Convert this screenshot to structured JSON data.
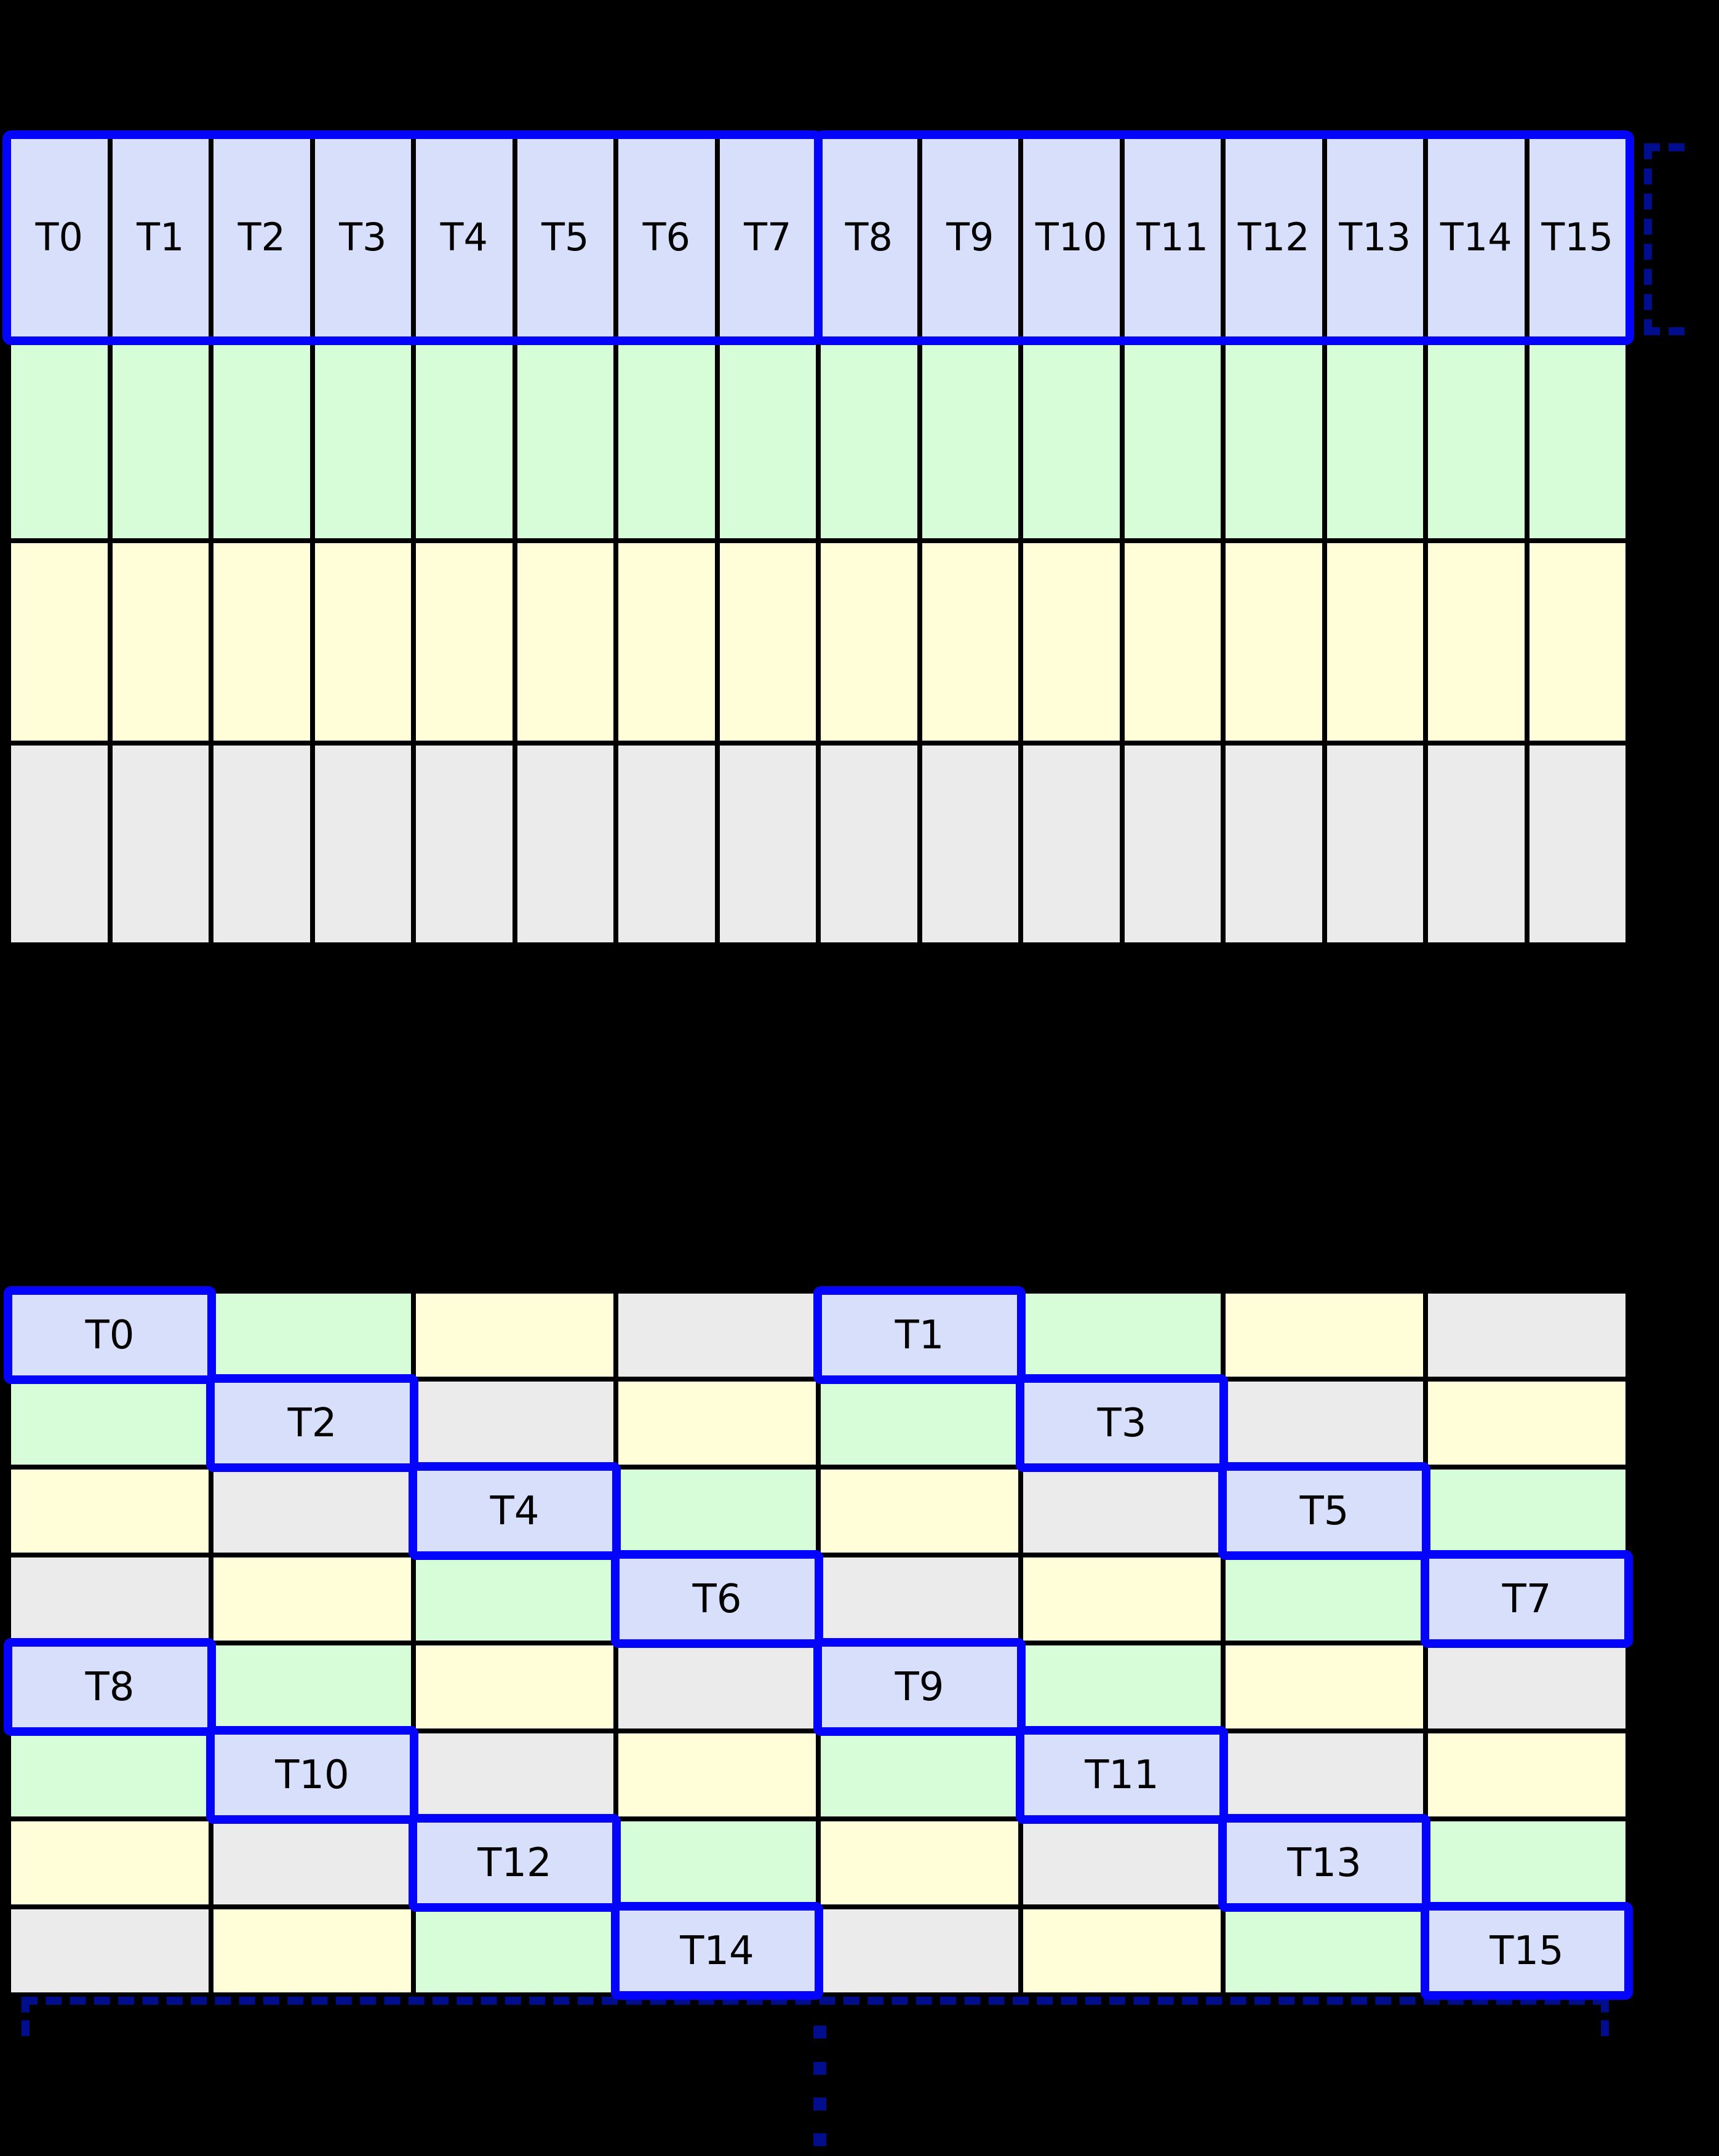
{
  "palette": {
    "thread_cell": "#d7dffb",
    "green_cell": "#d6fdd7",
    "yellow_cell": "#fffed8",
    "gray_cell": "#ebebeb",
    "highlight_border": "#0404fc",
    "bracket_color": "#000d8d",
    "grid_line": "#000000",
    "background": "#000000"
  },
  "top_grid": {
    "rows": [
      {
        "name": "thread-row",
        "cells": [
          {
            "color": "thread",
            "label": "T0"
          },
          {
            "color": "thread",
            "label": "T1"
          },
          {
            "color": "thread",
            "label": "T2"
          },
          {
            "color": "thread",
            "label": "T3"
          },
          {
            "color": "thread",
            "label": "T4"
          },
          {
            "color": "thread",
            "label": "T5"
          },
          {
            "color": "thread",
            "label": "T6"
          },
          {
            "color": "thread",
            "label": "T7"
          },
          {
            "color": "thread",
            "label": "T8"
          },
          {
            "color": "thread",
            "label": "T9"
          },
          {
            "color": "thread",
            "label": "T10"
          },
          {
            "color": "thread",
            "label": "T11"
          },
          {
            "color": "thread",
            "label": "T12"
          },
          {
            "color": "thread",
            "label": "T13"
          },
          {
            "color": "thread",
            "label": "T14"
          },
          {
            "color": "thread",
            "label": "T15"
          }
        ]
      },
      {
        "name": "green-row",
        "repeat": 16,
        "color": "green"
      },
      {
        "name": "yellow-row",
        "repeat": 16,
        "color": "yellow"
      },
      {
        "name": "gray-row",
        "repeat": 16,
        "color": "gray"
      }
    ]
  },
  "bottom_grid": {
    "rows": [
      {
        "cells": [
          {
            "color": "thread",
            "label": "T0",
            "highlight": true
          },
          {
            "color": "green"
          },
          {
            "color": "yellow"
          },
          {
            "color": "gray"
          },
          {
            "color": "thread",
            "label": "T1",
            "highlight": true
          },
          {
            "color": "green"
          },
          {
            "color": "yellow"
          },
          {
            "color": "gray"
          }
        ]
      },
      {
        "cells": [
          {
            "color": "green"
          },
          {
            "color": "thread",
            "label": "T2",
            "highlight": true
          },
          {
            "color": "gray"
          },
          {
            "color": "yellow"
          },
          {
            "color": "green"
          },
          {
            "color": "thread",
            "label": "T3",
            "highlight": true
          },
          {
            "color": "gray"
          },
          {
            "color": "yellow"
          }
        ]
      },
      {
        "cells": [
          {
            "color": "yellow"
          },
          {
            "color": "gray"
          },
          {
            "color": "thread",
            "label": "T4",
            "highlight": true
          },
          {
            "color": "green"
          },
          {
            "color": "yellow"
          },
          {
            "color": "gray"
          },
          {
            "color": "thread",
            "label": "T5",
            "highlight": true
          },
          {
            "color": "green"
          }
        ]
      },
      {
        "cells": [
          {
            "color": "gray"
          },
          {
            "color": "yellow"
          },
          {
            "color": "green"
          },
          {
            "color": "thread",
            "label": "T6",
            "highlight": true
          },
          {
            "color": "gray"
          },
          {
            "color": "yellow"
          },
          {
            "color": "green"
          },
          {
            "color": "thread",
            "label": "T7",
            "highlight": true
          }
        ]
      },
      {
        "cells": [
          {
            "color": "thread",
            "label": "T8",
            "highlight": true
          },
          {
            "color": "green"
          },
          {
            "color": "yellow"
          },
          {
            "color": "gray"
          },
          {
            "color": "thread",
            "label": "T9",
            "highlight": true
          },
          {
            "color": "green"
          },
          {
            "color": "yellow"
          },
          {
            "color": "gray"
          }
        ]
      },
      {
        "cells": [
          {
            "color": "green"
          },
          {
            "color": "thread",
            "label": "T10",
            "highlight": true
          },
          {
            "color": "gray"
          },
          {
            "color": "yellow"
          },
          {
            "color": "green"
          },
          {
            "color": "thread",
            "label": "T11",
            "highlight": true
          },
          {
            "color": "gray"
          },
          {
            "color": "yellow"
          }
        ]
      },
      {
        "cells": [
          {
            "color": "yellow"
          },
          {
            "color": "gray"
          },
          {
            "color": "thread",
            "label": "T12",
            "highlight": true
          },
          {
            "color": "green"
          },
          {
            "color": "yellow"
          },
          {
            "color": "gray"
          },
          {
            "color": "thread",
            "label": "T13",
            "highlight": true
          },
          {
            "color": "green"
          }
        ]
      },
      {
        "cells": [
          {
            "color": "gray"
          },
          {
            "color": "yellow"
          },
          {
            "color": "green"
          },
          {
            "color": "thread",
            "label": "T14",
            "highlight": true
          },
          {
            "color": "gray"
          },
          {
            "color": "yellow"
          },
          {
            "color": "green"
          },
          {
            "color": "thread",
            "label": "T15",
            "highlight": true
          }
        ]
      }
    ]
  }
}
